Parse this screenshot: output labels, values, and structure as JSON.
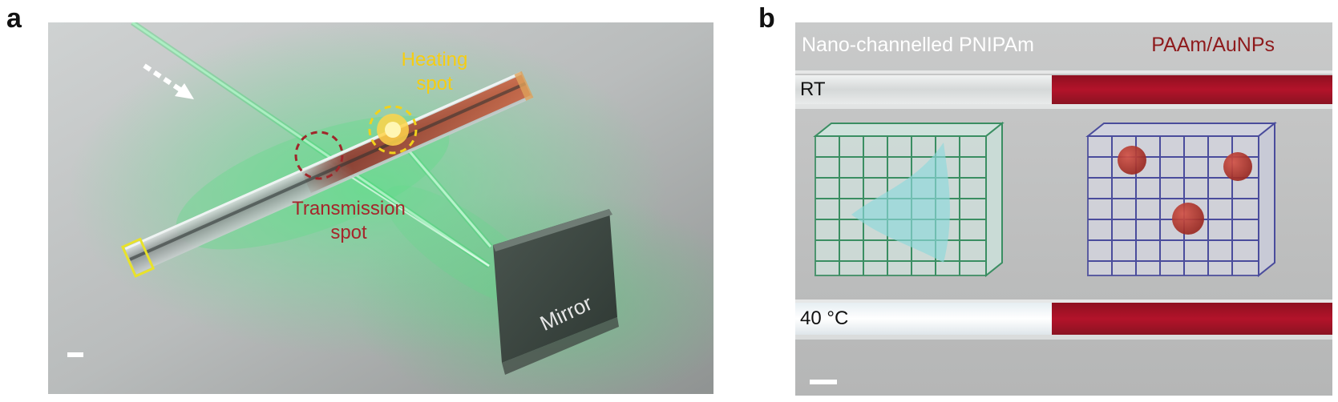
{
  "figure": {
    "panels": [
      {
        "letter": "a",
        "labels": {
          "heating": [
            "Heating",
            "spot"
          ],
          "transmission": [
            "Transmission",
            "spot"
          ],
          "mirror": "Mirror"
        }
      },
      {
        "letter": "b",
        "labels": {
          "left_header": "Nano-channelled PNIPAm",
          "right_header": "PAAm/AuNPs",
          "top_row": "RT",
          "bottom_row": "40 °C"
        }
      }
    ]
  },
  "colors": {
    "heating_marker": "#f2d21b",
    "transmission_marker": "#a0262a",
    "laser_green": "#39d96e",
    "gel_red": "#b3132a",
    "grid_green": "#3a8e62",
    "grid_blue": "#4a4c9c"
  }
}
